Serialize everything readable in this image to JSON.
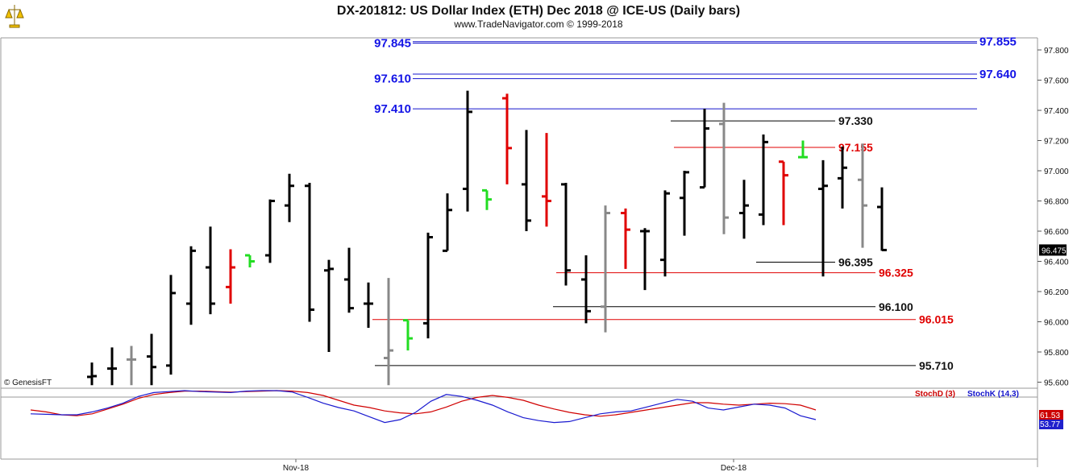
{
  "chart_data": {
    "type": "ohlc",
    "title": "DX-201812:  US Dollar Index (ETH) Dec 2018 @ ICE-US  (Daily bars)",
    "subtitle": "www.TradeNavigator.com © 1999-2018",
    "copyright": "© GenesisFT",
    "ylim": [
      95.56,
      97.88
    ],
    "y_ticks": [
      "97.800",
      "97.600",
      "97.400",
      "97.200",
      "97.000",
      "96.800",
      "96.600",
      "96.400",
      "96.200",
      "96.000",
      "95.800",
      "95.600"
    ],
    "x_ticks": [
      "Nov-18",
      "Dec-18"
    ],
    "last_price": "96.475",
    "bars": [
      {
        "o": 95.635,
        "h": 95.73,
        "l": 95.58,
        "c": 95.64,
        "color": "black"
      },
      {
        "o": 95.69,
        "h": 95.83,
        "l": 95.58,
        "c": 95.69,
        "color": "black"
      },
      {
        "o": 95.75,
        "h": 95.84,
        "l": 95.58,
        "c": 95.75,
        "color": "gray"
      },
      {
        "o": 95.77,
        "h": 95.92,
        "l": 95.58,
        "c": 95.7,
        "color": "black"
      },
      {
        "o": 95.71,
        "h": 96.31,
        "l": 95.65,
        "c": 96.19,
        "color": "black"
      },
      {
        "o": 96.12,
        "h": 96.5,
        "l": 95.98,
        "c": 96.47,
        "color": "black"
      },
      {
        "o": 96.36,
        "h": 96.63,
        "l": 96.05,
        "c": 96.12,
        "color": "black"
      },
      {
        "o": 96.23,
        "h": 96.48,
        "l": 96.12,
        "c": 96.36,
        "color": "red"
      },
      {
        "o": 96.44,
        "h": 96.44,
        "l": 96.36,
        "c": 96.4,
        "color": "green"
      },
      {
        "o": 96.44,
        "h": 96.81,
        "l": 96.39,
        "c": 96.8,
        "color": "black"
      },
      {
        "o": 96.77,
        "h": 96.98,
        "l": 96.66,
        "c": 96.9,
        "color": "black"
      },
      {
        "o": 96.9,
        "h": 96.92,
        "l": 96.0,
        "c": 96.08,
        "color": "black"
      },
      {
        "o": 96.34,
        "h": 96.41,
        "l": 95.8,
        "c": 96.35,
        "color": "black"
      },
      {
        "o": 96.28,
        "h": 96.49,
        "l": 96.06,
        "c": 96.09,
        "color": "black"
      },
      {
        "o": 96.12,
        "h": 96.26,
        "l": 95.96,
        "c": 96.12,
        "color": "black"
      },
      {
        "o": 95.76,
        "h": 96.29,
        "l": 95.58,
        "c": 95.81,
        "color": "gray"
      },
      {
        "o": 96.01,
        "h": 96.01,
        "l": 95.81,
        "c": 95.89,
        "color": "green"
      },
      {
        "o": 95.99,
        "h": 96.59,
        "l": 95.89,
        "c": 96.56,
        "color": "black"
      },
      {
        "o": 96.47,
        "h": 96.85,
        "l": 96.47,
        "c": 96.74,
        "color": "black"
      },
      {
        "o": 96.88,
        "h": 97.53,
        "l": 96.73,
        "c": 97.39,
        "color": "black"
      },
      {
        "o": 96.87,
        "h": 96.87,
        "l": 96.74,
        "c": 96.81,
        "color": "green"
      },
      {
        "o": 97.48,
        "h": 97.51,
        "l": 96.91,
        "c": 97.15,
        "color": "red"
      },
      {
        "o": 96.91,
        "h": 97.27,
        "l": 96.6,
        "c": 96.67,
        "color": "black"
      },
      {
        "o": 96.83,
        "h": 97.25,
        "l": 96.63,
        "c": 96.8,
        "color": "red"
      },
      {
        "o": 96.91,
        "h": 96.92,
        "l": 96.24,
        "c": 96.34,
        "color": "black"
      },
      {
        "o": 96.28,
        "h": 96.44,
        "l": 95.99,
        "c": 96.07,
        "color": "black"
      },
      {
        "o": 96.1,
        "h": 96.77,
        "l": 95.93,
        "c": 96.72,
        "color": "gray"
      },
      {
        "o": 96.72,
        "h": 96.75,
        "l": 96.35,
        "c": 96.61,
        "color": "red"
      },
      {
        "o": 96.6,
        "h": 96.62,
        "l": 96.21,
        "c": 96.6,
        "color": "black"
      },
      {
        "o": 96.41,
        "h": 96.87,
        "l": 96.3,
        "c": 96.85,
        "color": "black"
      },
      {
        "o": 96.82,
        "h": 97.0,
        "l": 96.57,
        "c": 96.99,
        "color": "black"
      },
      {
        "o": 96.89,
        "h": 97.41,
        "l": 96.89,
        "c": 97.28,
        "color": "black"
      },
      {
        "o": 97.31,
        "h": 97.45,
        "l": 96.58,
        "c": 96.69,
        "color": "gray"
      },
      {
        "o": 96.72,
        "h": 96.94,
        "l": 96.55,
        "c": 96.77,
        "color": "black"
      },
      {
        "o": 96.71,
        "h": 97.24,
        "l": 96.64,
        "c": 97.19,
        "color": "black"
      },
      {
        "o": 97.06,
        "h": 97.06,
        "l": 96.64,
        "c": 96.97,
        "color": "red"
      },
      {
        "o": 97.09,
        "h": 97.2,
        "l": 97.09,
        "c": 97.09,
        "color": "green"
      },
      {
        "o": 96.88,
        "h": 97.07,
        "l": 96.3,
        "c": 96.9,
        "color": "black"
      },
      {
        "o": 96.95,
        "h": 97.16,
        "l": 96.75,
        "c": 97.02,
        "color": "black"
      },
      {
        "o": 96.94,
        "h": 97.18,
        "l": 96.49,
        "c": 96.77,
        "color": "gray"
      },
      {
        "o": 96.76,
        "h": 96.89,
        "l": 96.47,
        "c": 96.475,
        "color": "black"
      }
    ],
    "levels": [
      {
        "label": "97.845",
        "value": 97.845,
        "color": "blue",
        "side": "left"
      },
      {
        "label": "97.855",
        "value": 97.855,
        "color": "blue",
        "side": "right"
      },
      {
        "label": "97.610",
        "value": 97.61,
        "color": "blue",
        "side": "left"
      },
      {
        "label": "97.640",
        "value": 97.64,
        "color": "blue",
        "side": "right"
      },
      {
        "label": "97.410",
        "value": 97.41,
        "color": "blue",
        "side": "left"
      },
      {
        "label": "97.330",
        "value": 97.33,
        "color": "black",
        "side": "right"
      },
      {
        "label": "97.155",
        "value": 97.155,
        "color": "red",
        "side": "right"
      },
      {
        "label": "96.395",
        "value": 96.395,
        "color": "black",
        "side": "right"
      },
      {
        "label": "96.325",
        "value": 96.325,
        "color": "red",
        "side": "right"
      },
      {
        "label": "96.100",
        "value": 96.1,
        "color": "black",
        "side": "right"
      },
      {
        "label": "96.015",
        "value": 96.015,
        "color": "red",
        "side": "right"
      },
      {
        "label": "95.710",
        "value": 95.71,
        "color": "black",
        "side": "right"
      }
    ],
    "stochastic": {
      "legend_d": "StochD (3)",
      "legend_k": "StochK (14,3)",
      "value_d": "61.53",
      "value_k": "53.77",
      "ylim": [
        0,
        100
      ],
      "series": [
        {
          "name": "StochD (3)",
          "color": "#d00000",
          "values": [
            60,
            56,
            50,
            48,
            52,
            62,
            72,
            84,
            92,
            96,
            99,
            99,
            98,
            97,
            98,
            99,
            100,
            99,
            96,
            90,
            80,
            70,
            65,
            58,
            54,
            52,
            56,
            66,
            78,
            86,
            90,
            86,
            80,
            70,
            62,
            55,
            50,
            47,
            50,
            55,
            60,
            65,
            70,
            75,
            75,
            72,
            70,
            72,
            74,
            73,
            70,
            60
          ]
        },
        {
          "name": "StochK (14,3)",
          "color": "#1a1ad0",
          "values": [
            52,
            51,
            50,
            50,
            56,
            64,
            74,
            88,
            96,
            98,
            100,
            98,
            97,
            96,
            99,
            100,
            100,
            97,
            86,
            74,
            65,
            58,
            46,
            34,
            40,
            55,
            78,
            92,
            88,
            80,
            70,
            56,
            44,
            38,
            34,
            36,
            44,
            52,
            56,
            58,
            66,
            74,
            82,
            78,
            64,
            60,
            66,
            72,
            70,
            64,
            48,
            40
          ]
        }
      ]
    }
  }
}
